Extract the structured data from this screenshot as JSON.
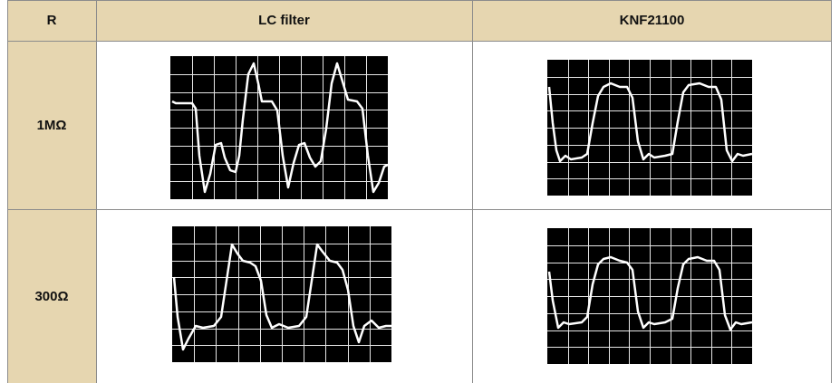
{
  "table": {
    "headers": [
      "R",
      "LC filter",
      "KNF21100"
    ],
    "rows": [
      {
        "label": "1MΩ"
      },
      {
        "label": "300Ω"
      }
    ]
  },
  "colors": {
    "header_bg": "#e6d6b0",
    "scope_bg": "#000000",
    "trace": "#ffffff",
    "grid": "#ffffff"
  }
}
